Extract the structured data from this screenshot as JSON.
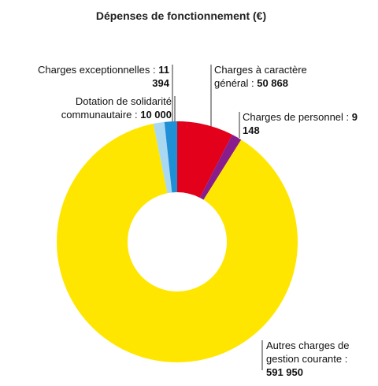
{
  "chart_data": {
    "type": "donut",
    "title": "Dépenses de fonctionnement (€)",
    "categories": [
      "Charges à caractère général :",
      "Charges de personnel :",
      "Autres charges de gestion courante :",
      "Dotation de solidarité communautaire :",
      "Charges exceptionnelles :"
    ],
    "values": [
      50868,
      9148,
      591950,
      10000,
      11394
    ],
    "value_labels": [
      "50 868",
      "9 148",
      "591 950",
      "10 000",
      "11 394"
    ],
    "colors": [
      "#e2001a",
      "#8a1d8c",
      "#ffe600",
      "#a9d9f2",
      "#1f8fd6"
    ]
  }
}
